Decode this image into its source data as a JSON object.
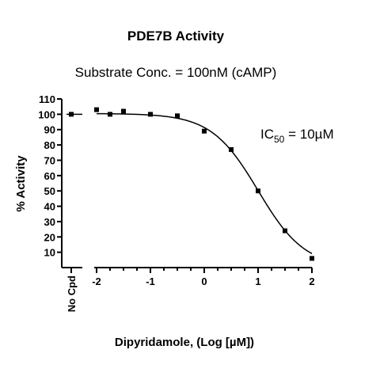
{
  "chart_data": {
    "type": "scatter",
    "title": "PDE7B Activity",
    "subtitle": "Substrate Conc. = 100nM (cAMP)",
    "xlabel": "Dipyridamole, (Log [µM])",
    "ylabel": "% Activity",
    "xlim": [
      -2,
      2
    ],
    "ylim": [
      0,
      110
    ],
    "x_ticks": [
      "-2",
      "-1",
      "0",
      "1",
      "2"
    ],
    "y_ticks": [
      "10",
      "20",
      "30",
      "40",
      "50",
      "60",
      "70",
      "80",
      "90",
      "100",
      "110"
    ],
    "control_label": "No Cpd",
    "control_value": 100,
    "annotation": {
      "text": "IC",
      "sub": "50",
      "rest": " = 10µM"
    },
    "series": [
      {
        "x": [
          -2,
          -1.75,
          -1.5,
          -1,
          -0.5,
          0,
          0.5,
          1,
          1.5,
          2
        ],
        "y": [
          103,
          100,
          102,
          100,
          99,
          89,
          77,
          50,
          24,
          6
        ]
      }
    ],
    "fit": {
      "top": 100.5,
      "bottom": 0,
      "log_ic50": 1,
      "hill": 1
    }
  }
}
